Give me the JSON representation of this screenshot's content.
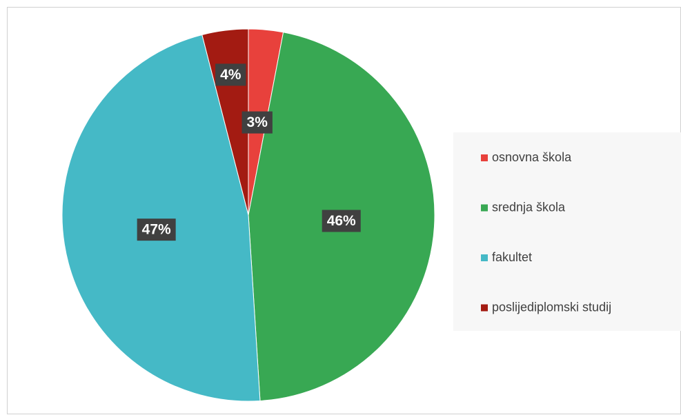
{
  "chart_data": {
    "type": "pie",
    "categories": [
      "osnovna škola",
      "srednja škola",
      "fakultet",
      "poslijediplomski studij"
    ],
    "values": [
      3,
      46,
      47,
      4
    ],
    "value_labels": [
      "3%",
      "46%",
      "47%",
      "4%"
    ],
    "colors": [
      "#e8413c",
      "#38a853",
      "#45b9c6",
      "#a31b12"
    ],
    "legend": "right"
  }
}
